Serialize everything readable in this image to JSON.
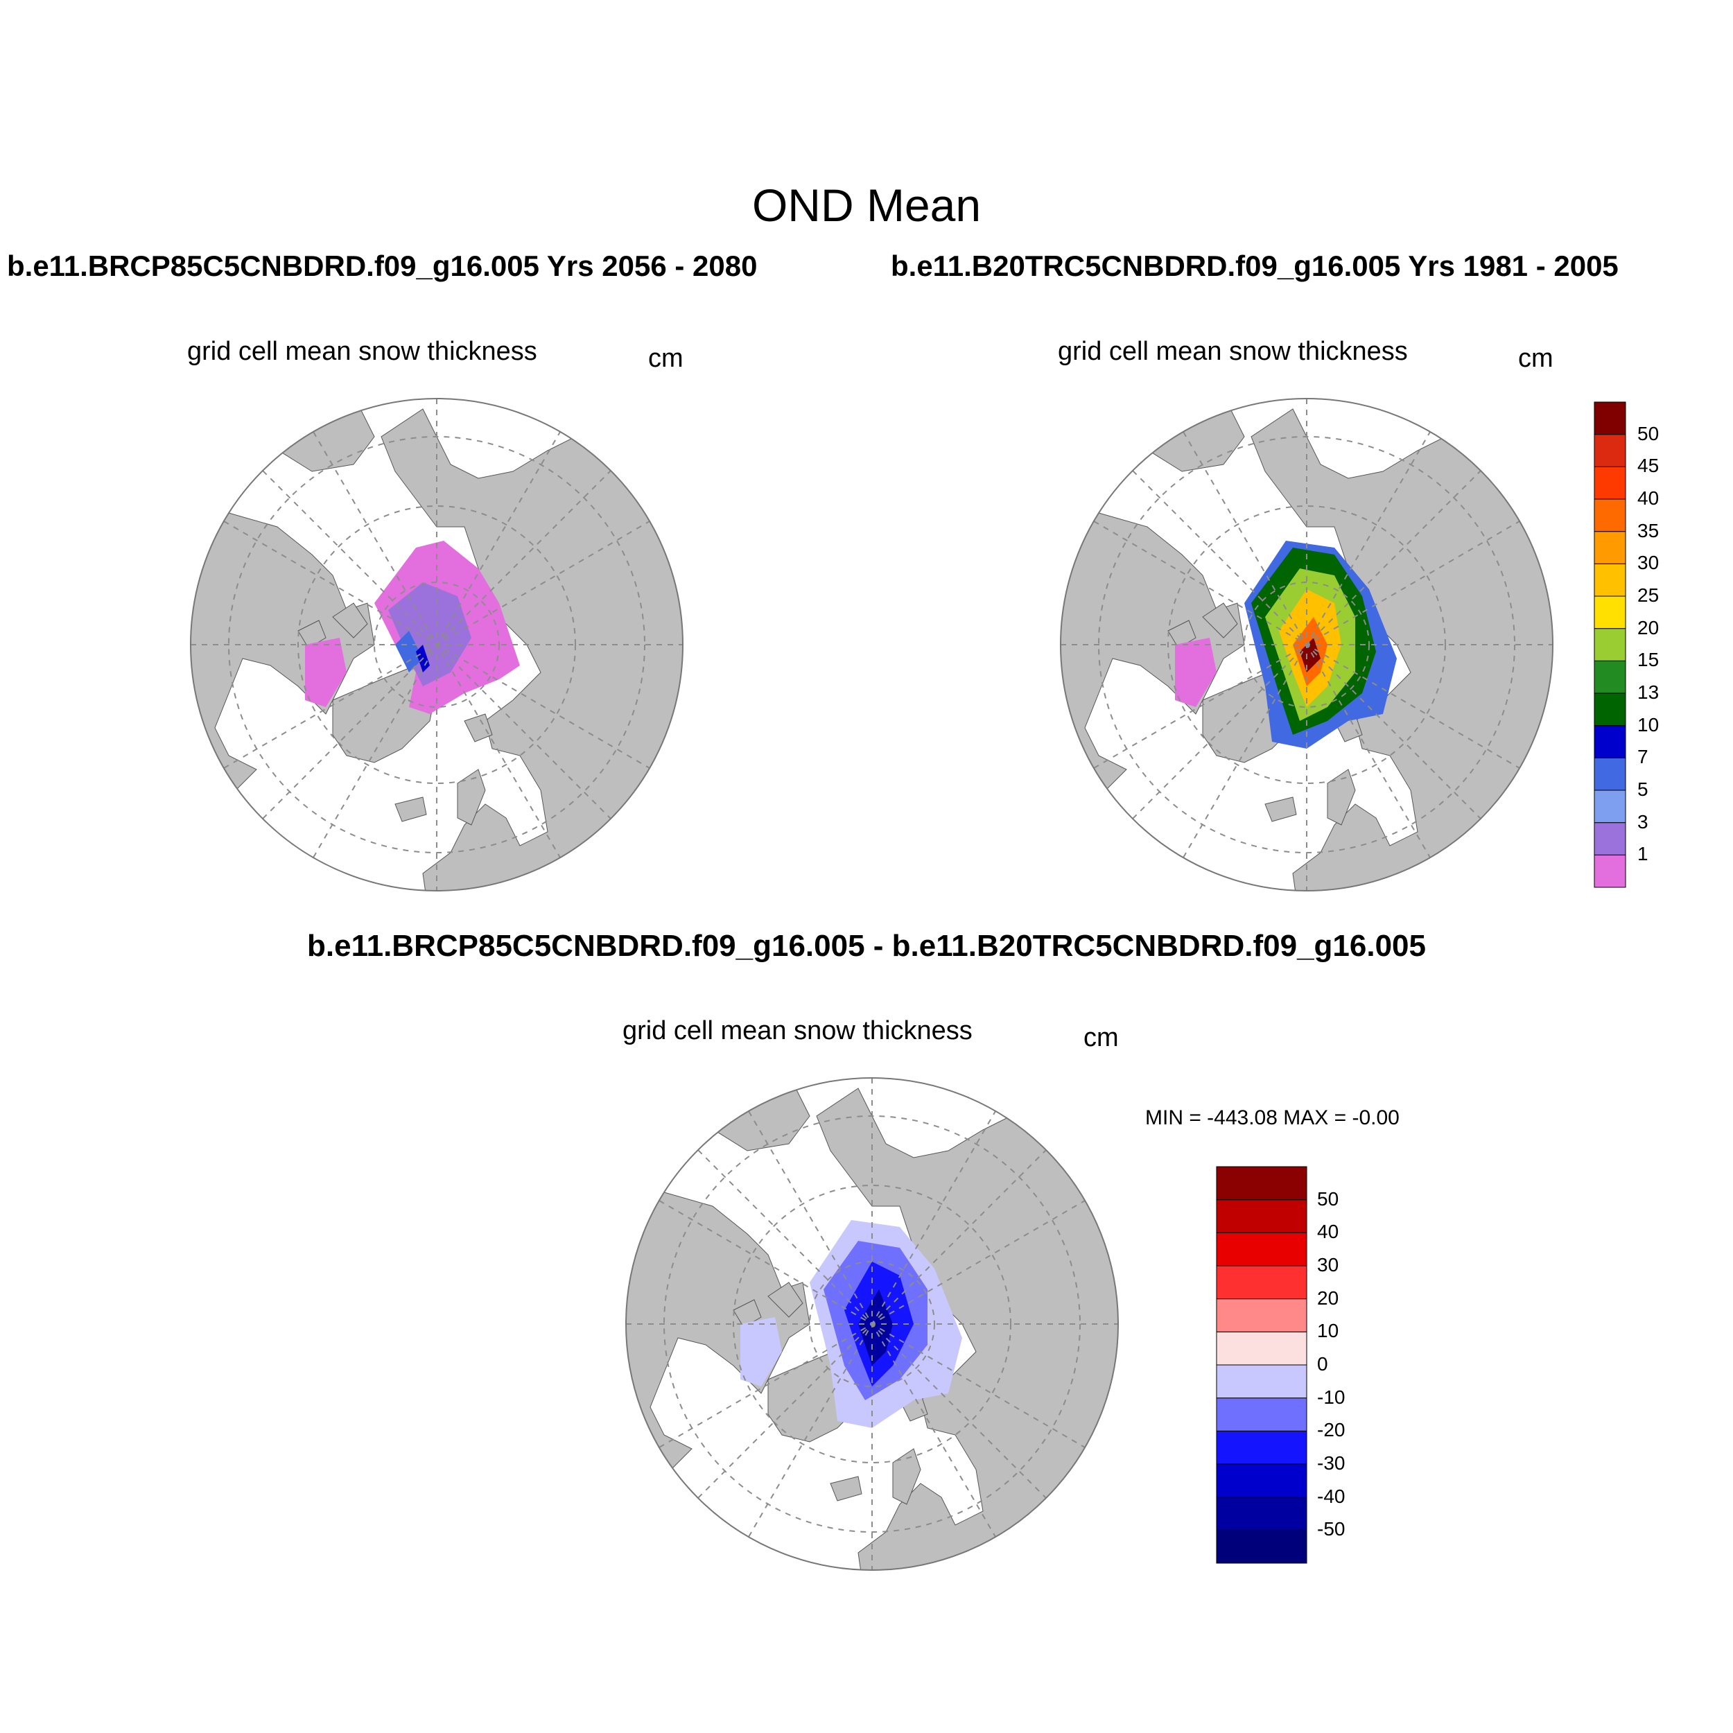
{
  "figure": {
    "title": "OND Mean",
    "left_subtitle": "b.e11.BRCP85C5CNBDRD.f09_g16.005  Yrs 2056 - 2080",
    "right_subtitle": "b.e11.B20TRC5CNBDRD.f09_g16.005  Yrs 1981 - 2005",
    "diff_subtitle": "b.e11.BRCP85C5CNBDRD.f09_g16.005 - b.e11.B20TRC5CNBDRD.f09_g16.005"
  },
  "panels": {
    "left": {
      "title": "grid cell mean snow thickness",
      "units": "cm"
    },
    "right": {
      "title": "grid cell mean snow thickness",
      "units": "cm"
    },
    "diff": {
      "title": "grid cell mean snow thickness",
      "units": "cm",
      "min_max": "MIN = -443.08 MAX =  -0.00"
    }
  },
  "colors": {
    "land": "#bebebe",
    "ocean": "#ffffff",
    "grid": "#8c8c8c"
  },
  "chart_data": [
    {
      "type": "colorbar",
      "labels": [
        "1",
        "3",
        "5",
        "7",
        "10",
        "13",
        "15",
        "20",
        "25",
        "30",
        "35",
        "40",
        "45",
        "50"
      ],
      "colors": [
        "#e36ede",
        "#9b72dc",
        "#7e9ef0",
        "#4169e1",
        "#0000cd",
        "#006400",
        "#228b22",
        "#9acd32",
        "#ffe000",
        "#ffc000",
        "#ff9a00",
        "#ff6a00",
        "#ff3a00",
        "#dc2a10",
        "#800000"
      ]
    },
    {
      "type": "colorbar",
      "labels": [
        "-50",
        "-40",
        "-30",
        "-20",
        "-10",
        "0",
        "10",
        "20",
        "30",
        "40",
        "50"
      ],
      "colors": [
        "#00007a",
        "#0000a0",
        "#0000cc",
        "#1414ff",
        "#7070ff",
        "#c8c8ff",
        "#fce0e0",
        "#ff8888",
        "#ff3030",
        "#e80000",
        "#c00000",
        "#8b0000"
      ]
    }
  ]
}
